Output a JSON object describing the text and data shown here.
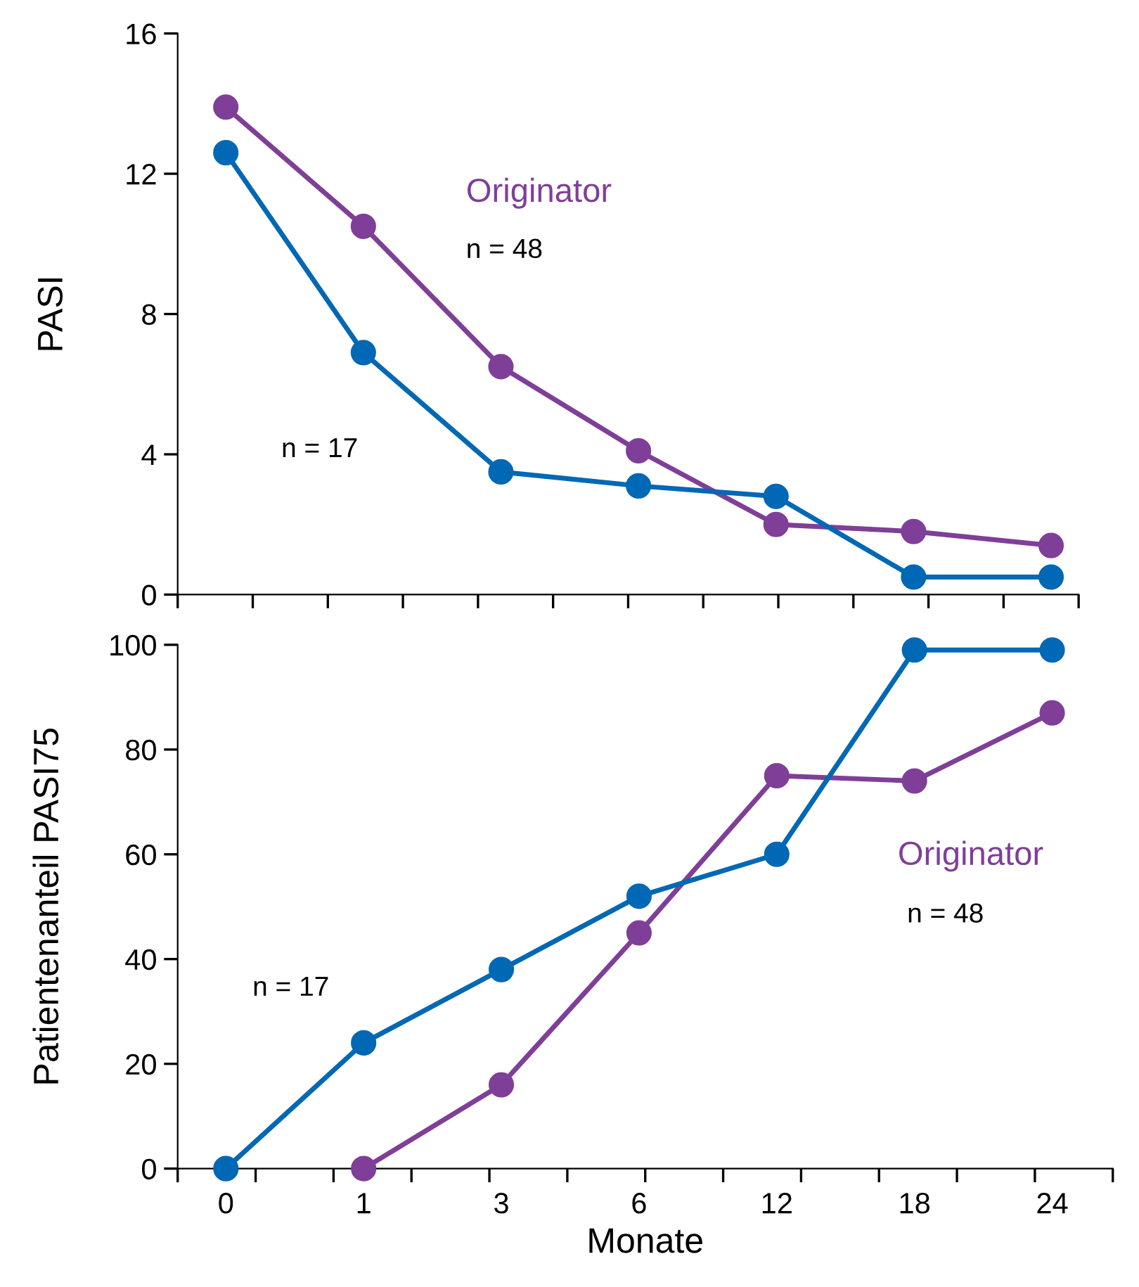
{
  "chart_data": [
    {
      "type": "line",
      "ylabel": "PASI",
      "categories": [
        "0",
        "1",
        "3",
        "6",
        "12",
        "18",
        "24"
      ],
      "ylim": [
        0,
        16
      ],
      "yticks": [
        0,
        4,
        8,
        12,
        16
      ],
      "tick_labels": "y",
      "marker": "circle",
      "line_style": "solid",
      "series": [
        {
          "name": "Originator",
          "color": "#7f3f98",
          "values": [
            13.9,
            10.5,
            6.5,
            4.1,
            2.0,
            1.8,
            1.4
          ]
        },
        {
          "color": "#0068b4",
          "values": [
            12.6,
            6.9,
            3.5,
            3.1,
            2.8,
            0.5,
            0.5
          ]
        }
      ],
      "annotations": [
        "n = 48",
        "n = 17"
      ]
    },
    {
      "type": "line",
      "ylabel": "Patientenanteil PASI75",
      "xlabel": "Monate",
      "categories": [
        "0",
        "1",
        "3",
        "6",
        "12",
        "18",
        "24"
      ],
      "ylim": [
        0,
        100
      ],
      "yticks": [
        0,
        20,
        40,
        60,
        80,
        100
      ],
      "marker": "circle",
      "line_style": "solid",
      "series": [
        {
          "name": "Originator",
          "color": "#7f3f98",
          "values": [
            null,
            0,
            16,
            45,
            75,
            74,
            87
          ]
        },
        {
          "color": "#0068b4",
          "values": [
            0,
            24,
            38,
            52,
            60,
            99,
            99
          ]
        }
      ],
      "annotations": [
        "n = 48",
        "n = 17"
      ]
    }
  ]
}
